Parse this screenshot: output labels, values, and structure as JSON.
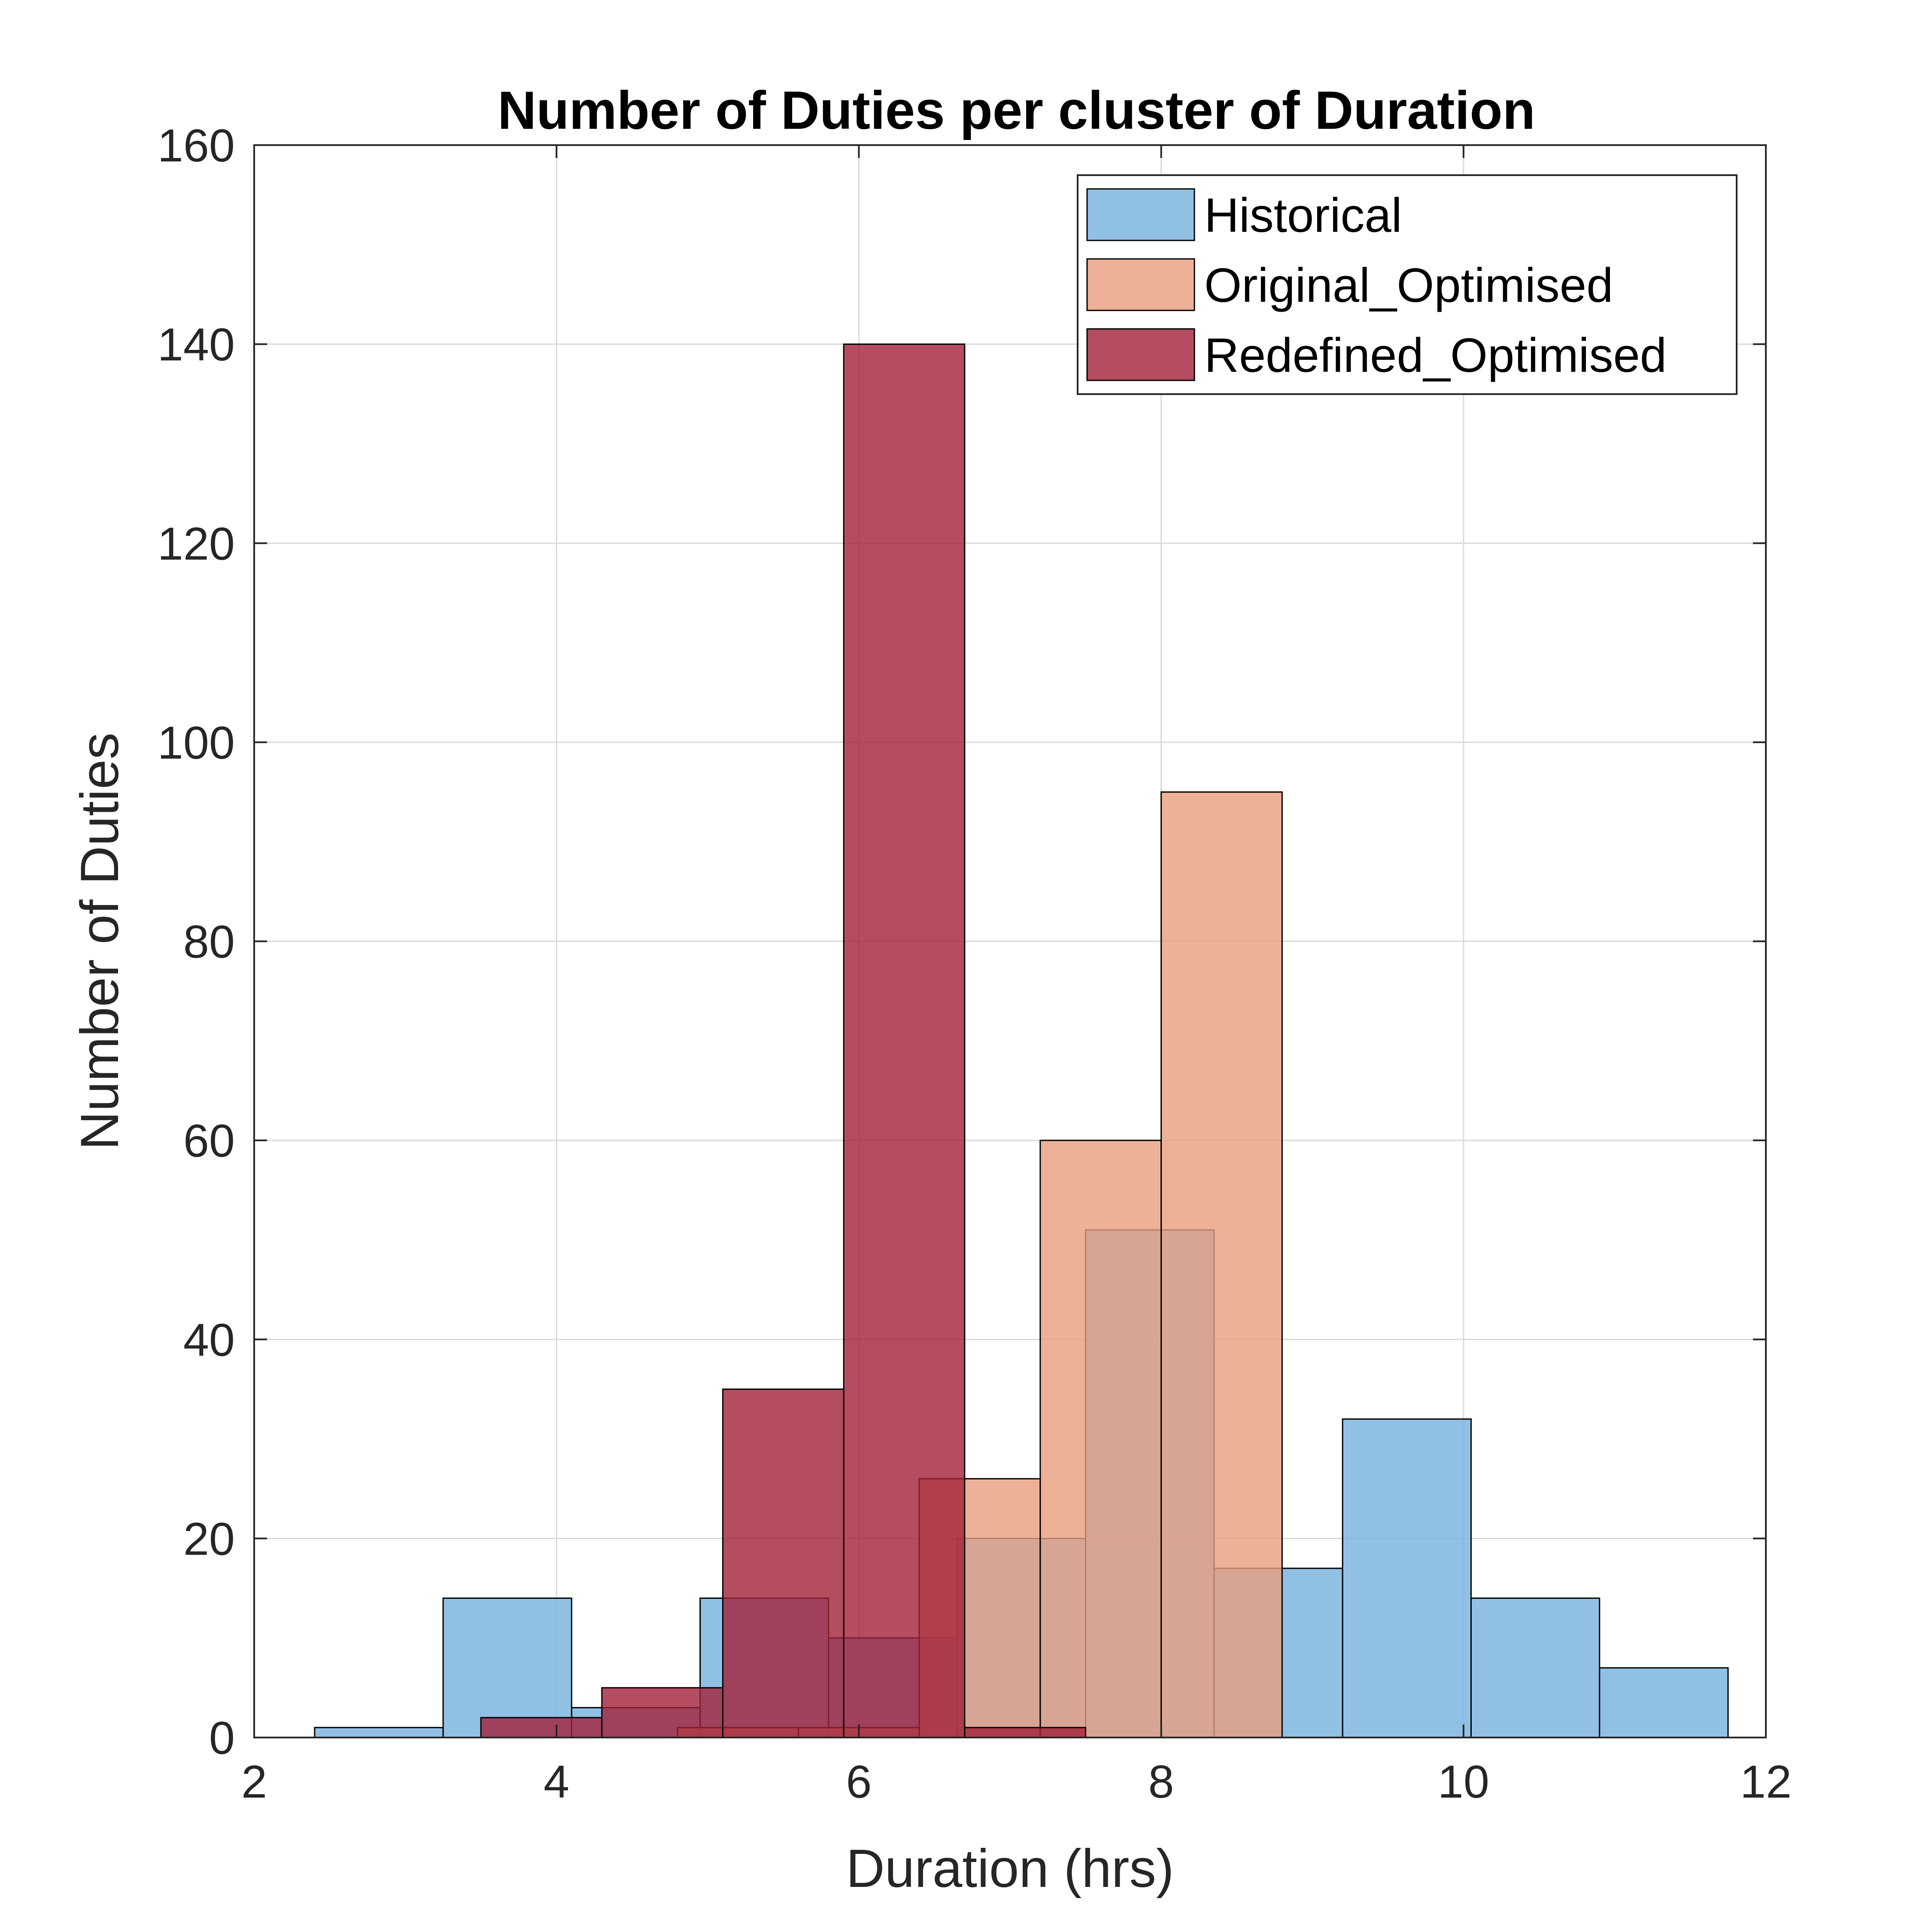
{
  "chart_data": {
    "type": "bar",
    "subtype": "overlapping-histogram",
    "title": "Number of Duties per cluster of Duration",
    "xlabel": "Duration (hrs)",
    "ylabel": "Number of Duties",
    "xlim": [
      2,
      12
    ],
    "ylim": [
      0,
      160
    ],
    "xticks": [
      2,
      4,
      6,
      8,
      10,
      12
    ],
    "yticks": [
      0,
      20,
      40,
      60,
      80,
      100,
      120,
      140,
      160
    ],
    "grid": true,
    "legend_position": "top-right",
    "series": [
      {
        "name": "Historical",
        "color": "#7EB5E0",
        "opacity": 0.85,
        "bins": [
          {
            "x0": 2.4,
            "x1": 3.25,
            "value": 1
          },
          {
            "x0": 3.25,
            "x1": 4.1,
            "value": 14
          },
          {
            "x0": 4.1,
            "x1": 4.95,
            "value": 3
          },
          {
            "x0": 4.95,
            "x1": 5.8,
            "value": 14
          },
          {
            "x0": 5.8,
            "x1": 6.65,
            "value": 10
          },
          {
            "x0": 6.65,
            "x1": 7.5,
            "value": 20
          },
          {
            "x0": 7.5,
            "x1": 8.35,
            "value": 51
          },
          {
            "x0": 8.35,
            "x1": 9.2,
            "value": 17
          },
          {
            "x0": 9.2,
            "x1": 10.05,
            "value": 32
          },
          {
            "x0": 10.05,
            "x1": 10.9,
            "value": 14
          },
          {
            "x0": 10.9,
            "x1": 11.75,
            "value": 7
          }
        ]
      },
      {
        "name": "Original_Optimised",
        "color": "#E99E7E",
        "opacity": 0.8,
        "bins": [
          {
            "x0": 4.8,
            "x1": 5.6,
            "value": 1
          },
          {
            "x0": 5.6,
            "x1": 6.4,
            "value": 1
          },
          {
            "x0": 6.4,
            "x1": 7.2,
            "value": 26
          },
          {
            "x0": 7.2,
            "x1": 8.0,
            "value": 60
          },
          {
            "x0": 8.0,
            "x1": 8.8,
            "value": 95
          }
        ]
      },
      {
        "name": "Redefined_Optimised",
        "color": "#A2213A",
        "opacity": 0.8,
        "bins": [
          {
            "x0": 3.5,
            "x1": 4.3,
            "value": 2
          },
          {
            "x0": 4.3,
            "x1": 5.1,
            "value": 5
          },
          {
            "x0": 5.1,
            "x1": 5.9,
            "value": 35
          },
          {
            "x0": 5.9,
            "x1": 6.7,
            "value": 140
          },
          {
            "x0": 6.7,
            "x1": 7.5,
            "value": 1
          }
        ]
      }
    ]
  }
}
